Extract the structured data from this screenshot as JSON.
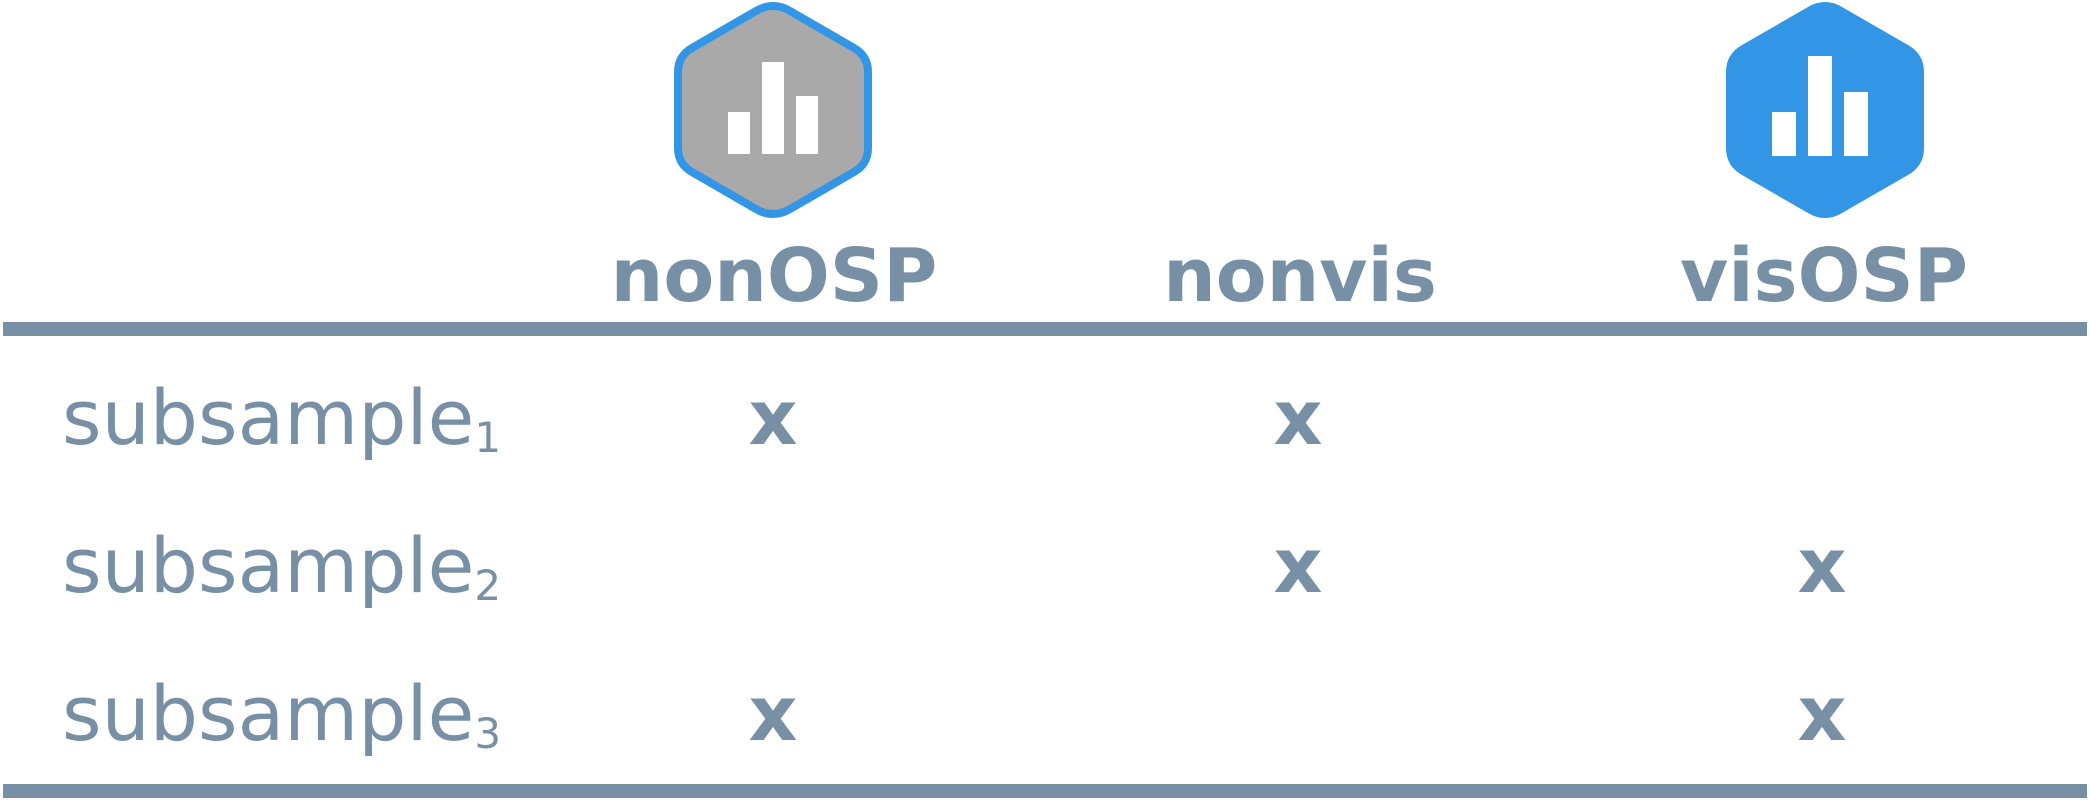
{
  "columns": [
    {
      "label": "nonOSP",
      "icon": "bar-chart-hexagon-gray-icon"
    },
    {
      "label": "nonvis",
      "icon": ""
    },
    {
      "label": "visOSP",
      "icon": "bar-chart-hexagon-blue-icon"
    }
  ],
  "rows": [
    {
      "label": "subsample",
      "subscript": "1",
      "marks": [
        "x",
        "x",
        ""
      ]
    },
    {
      "label": "subsample",
      "subscript": "2",
      "marks": [
        "",
        "x",
        "x"
      ]
    },
    {
      "label": "subsample",
      "subscript": "3",
      "marks": [
        "x",
        "",
        "x"
      ]
    }
  ],
  "colors": {
    "text": "#7890a5",
    "rule": "#7890a5",
    "icon_gray_fill": "#a9a9a9",
    "icon_blue": "#3295e6",
    "icon_bars": "#ffffff"
  }
}
